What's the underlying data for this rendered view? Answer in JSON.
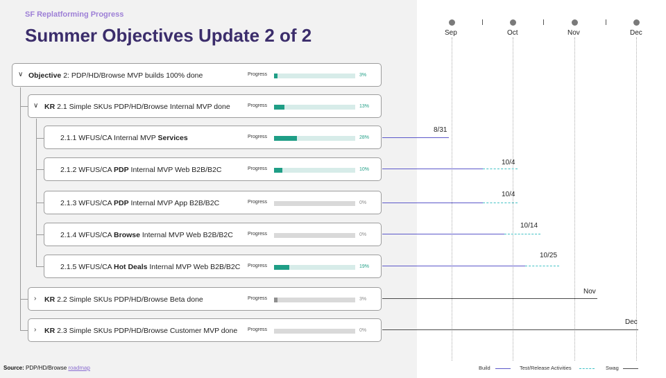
{
  "header": {
    "subtitle": "SF Replatforming Progress",
    "title": "Summer Objectives Update 2 of 2"
  },
  "objective": {
    "prefix": "Objective",
    "text": " 2: PDP/HD/Browse MVP builds 100% done",
    "progress_label": "Progress",
    "progress": 3,
    "pct": "3%"
  },
  "kr21": {
    "prefix": "KR",
    "text": " 2.1 Simple SKUs PDP/HD/Browse Internal MVP done",
    "progress_label": "Progress",
    "progress": 13,
    "pct": "13%"
  },
  "tasks": [
    {
      "pre": "2.1.1 WFUS/CA Internal MVP ",
      "bold": "Services",
      "post": "",
      "progress_label": "Progress",
      "progress": 28,
      "pct": "28%"
    },
    {
      "pre": "2.1.2 WFUS/CA ",
      "bold": "PDP",
      "post": " Internal MVP Web B2B/B2C",
      "progress_label": "Progress",
      "progress": 10,
      "pct": "10%"
    },
    {
      "pre": "2.1.3 WFUS/CA ",
      "bold": "PDP",
      "post": " Internal MVP App B2B/B2C",
      "progress_label": "Progress",
      "progress": 0,
      "pct": "0%"
    },
    {
      "pre": "2.1.4 WFUS/CA ",
      "bold": "Browse",
      "post": " Internal MVP Web B2B/B2C",
      "progress_label": "Progress",
      "progress": 0,
      "pct": "0%"
    },
    {
      "pre": "2.1.5 WFUS/CA ",
      "bold": "Hot Deals",
      "post": " Internal MVP Web B2B/B2C",
      "progress_label": "Progress",
      "progress": 19,
      "pct": "19%"
    }
  ],
  "kr22": {
    "prefix": "KR",
    "text": " 2.2 Simple SKUs PDP/HD/Browse Beta done",
    "progress_label": "Progress",
    "progress": 3,
    "pct": "3%"
  },
  "kr23": {
    "prefix": "KR",
    "text": " 2.3 Simple SKUs PDP/HD/Browse Customer MVP done",
    "progress_label": "Progress",
    "progress": 0,
    "pct": "0%"
  },
  "source": {
    "label": "Source:",
    "text": " PDP/HD/Browse ",
    "link": "roadmap"
  },
  "timeline": {
    "months": [
      "Sep",
      "Oct",
      "Nov",
      "Dec"
    ],
    "milestones": [
      "8/31",
      "10/4",
      "10/4",
      "10/14",
      "10/25",
      "Nov",
      "Dec"
    ]
  },
  "legend": {
    "build": "Build",
    "test": "Test/Release Activities",
    "swag": "Swag"
  },
  "colors": {
    "build": "#5b57c9",
    "test": "#3fc1c5",
    "swag": "#4a4a4a",
    "progress": "#1f9e86",
    "title": "#3b2d6b",
    "subtitle": "#9d7fd6"
  }
}
